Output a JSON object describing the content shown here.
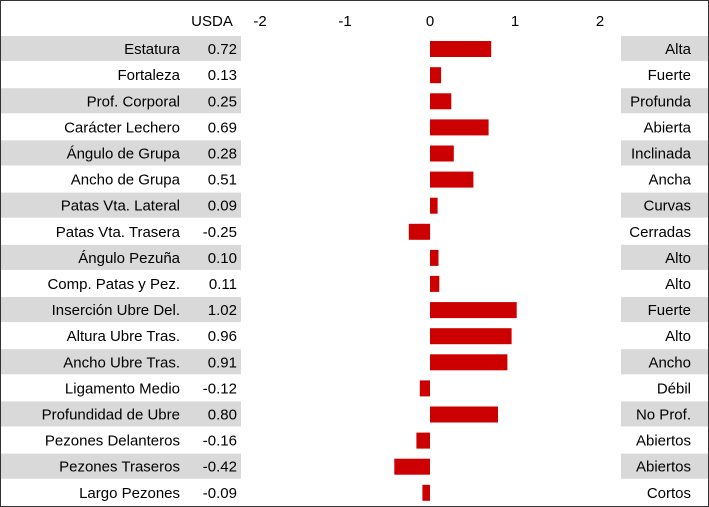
{
  "chart_data": {
    "type": "bar",
    "orientation": "horizontal",
    "value_header": "USDA",
    "xlim": [
      -2,
      2
    ],
    "x_ticks": [
      "-2",
      "-1",
      "0",
      "1",
      "2"
    ],
    "categories": [
      "Estatura",
      "Fortaleza",
      "Prof. Corporal",
      "Carácter Lechero",
      "Ángulo de Grupa",
      "Ancho de Grupa",
      "Patas Vta. Lateral",
      "Patas Vta. Trasera",
      "Ángulo Pezuña",
      "Comp. Patas y Pez.",
      "Inserción Ubre Del.",
      "Altura Ubre Tras.",
      "Ancho Ubre Tras.",
      "Ligamento Medio",
      "Profundidad de Ubre",
      "Pezones Delanteros",
      "Pezones Traseros",
      "Largo Pezones"
    ],
    "values": [
      0.72,
      0.13,
      0.25,
      0.69,
      0.28,
      0.51,
      0.09,
      -0.25,
      0.1,
      0.11,
      1.02,
      0.96,
      0.91,
      -0.12,
      0.8,
      -0.16,
      -0.42,
      -0.09
    ],
    "value_labels": [
      "0.72",
      "0.13",
      "0.25",
      "0.69",
      "0.28",
      "0.51",
      "0.09",
      "-0.25",
      "0.10",
      "0.11",
      "1.02",
      "0.96",
      "0.91",
      "-0.12",
      "0.80",
      "-0.16",
      "-0.42",
      "-0.09"
    ],
    "descriptors": [
      "Alta",
      "Fuerte",
      "Profunda",
      "Abierta",
      "Inclinada",
      "Ancha",
      "Curvas",
      "Cerradas",
      "Alto",
      "Alto",
      "Fuerte",
      "Alto",
      "Ancho",
      "Débil",
      "No Prof.",
      "Abiertos",
      "Abiertos",
      "Cortos"
    ],
    "colors": {
      "bar": "#cc0000",
      "row_shade": "#d9d9d9",
      "border": "#333333"
    }
  }
}
